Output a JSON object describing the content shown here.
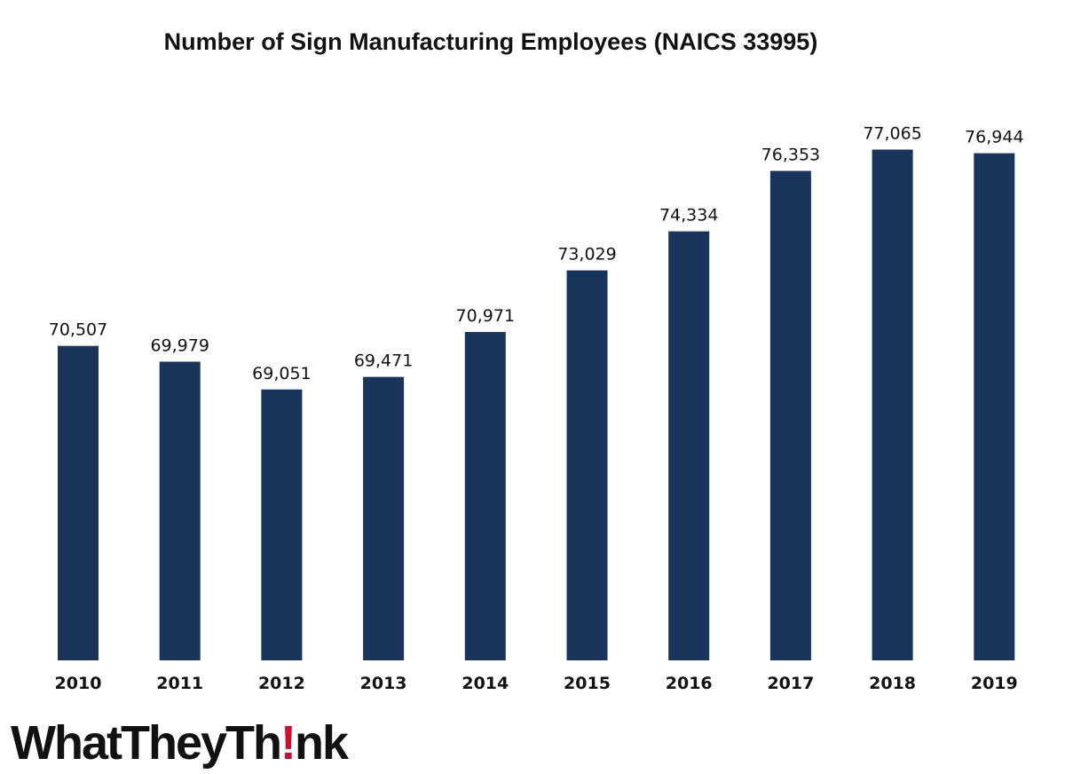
{
  "chart_data": {
    "type": "bar",
    "title": "Number of Sign Manufacturing Employees (NAICS 33995)",
    "categories": [
      "2010",
      "2011",
      "2012",
      "2013",
      "2014",
      "2015",
      "2016",
      "2017",
      "2018",
      "2019"
    ],
    "values": [
      70507,
      69979,
      69051,
      69471,
      70971,
      73029,
      74334,
      76353,
      77065,
      76944
    ],
    "value_labels": [
      "70,507",
      "69,979",
      "69,051",
      "69,471",
      "70,971",
      "73,029",
      "74,334",
      "76,353",
      "77,065",
      "76,944"
    ],
    "ylim": [
      60000,
      78000
    ],
    "grid": false,
    "legend": "none",
    "bar_color": "#1a355c"
  },
  "logo": {
    "text_before": "WhatTheyTh",
    "exclamation": "!",
    "text_after": "nk",
    "accent_color": "#c8102e"
  }
}
